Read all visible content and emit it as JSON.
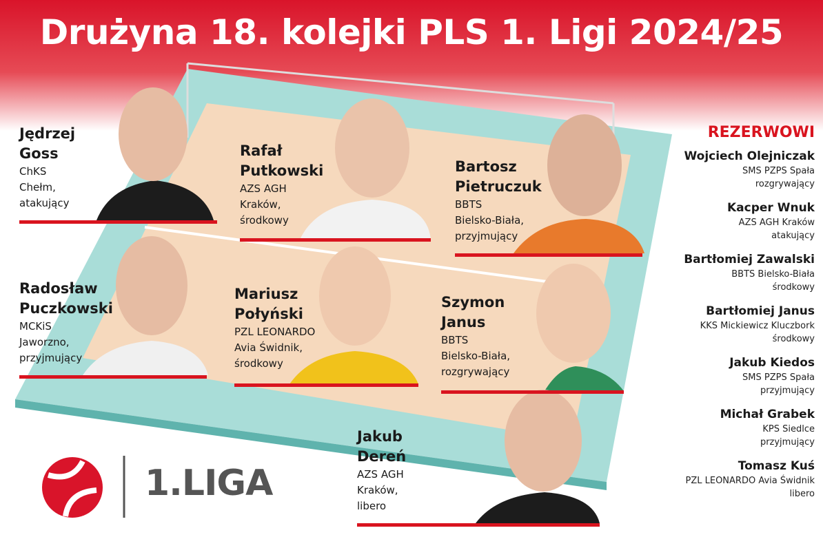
{
  "title": "Drużyna 18. kolejki PLS 1. Ligi 2024/25",
  "players": [
    {
      "name": [
        "Jędrzej",
        "Goss"
      ],
      "info": [
        "ChKS",
        "Chełm,",
        "atakujący"
      ]
    },
    {
      "name": [
        "Rafał",
        "Putkowski"
      ],
      "info": [
        "AZS AGH",
        "Kraków,",
        "środkowy"
      ]
    },
    {
      "name": [
        "Bartosz",
        "Pietruczuk"
      ],
      "info": [
        "BBTS",
        "Bielsko-Biała,",
        "przyjmujący"
      ]
    },
    {
      "name": [
        "Radosław",
        "Puczkowski"
      ],
      "info": [
        "MCKiS",
        "Jaworzno,",
        "przyjmujący"
      ]
    },
    {
      "name": [
        "Mariusz",
        "Połyński"
      ],
      "info": [
        "PZL LEONARDO",
        "Avia Świdnik,",
        "środkowy"
      ]
    },
    {
      "name": [
        "Szymon",
        "Janus"
      ],
      "info": [
        "BBTS",
        "Bielsko-Biała,",
        "rozgrywający"
      ]
    },
    {
      "name": [
        "Jakub",
        "Dereń"
      ],
      "info": [
        "AZS AGH",
        "Kraków,",
        "libero"
      ]
    }
  ],
  "reserves": {
    "title": "REZERWOWI",
    "items": [
      {
        "name": "Wojciech Olejniczak",
        "club": "SMS PZPS Spała",
        "position": "rozgrywający"
      },
      {
        "name": "Kacper Wnuk",
        "club": "AZS AGH Kraków",
        "position": "atakujący"
      },
      {
        "name": "Bartłomiej Zawalski",
        "club": "BBTS Bielsko-Biała",
        "position": "środkowy"
      },
      {
        "name": "Bartłomiej Janus",
        "club": "KKS Mickiewicz Kluczbork",
        "position": "środkowy"
      },
      {
        "name": "Jakub Kiedos",
        "club": "SMS PZPS Spała",
        "position": "przyjmujący"
      },
      {
        "name": "Michał Grabek",
        "club": "KPS Siedlce",
        "position": "przyjmujący"
      },
      {
        "name": "Tomasz Kuś",
        "club": "PZL LEONARDO Avia Świdnik",
        "position": "libero"
      }
    ]
  },
  "logo": "1.LIGA"
}
